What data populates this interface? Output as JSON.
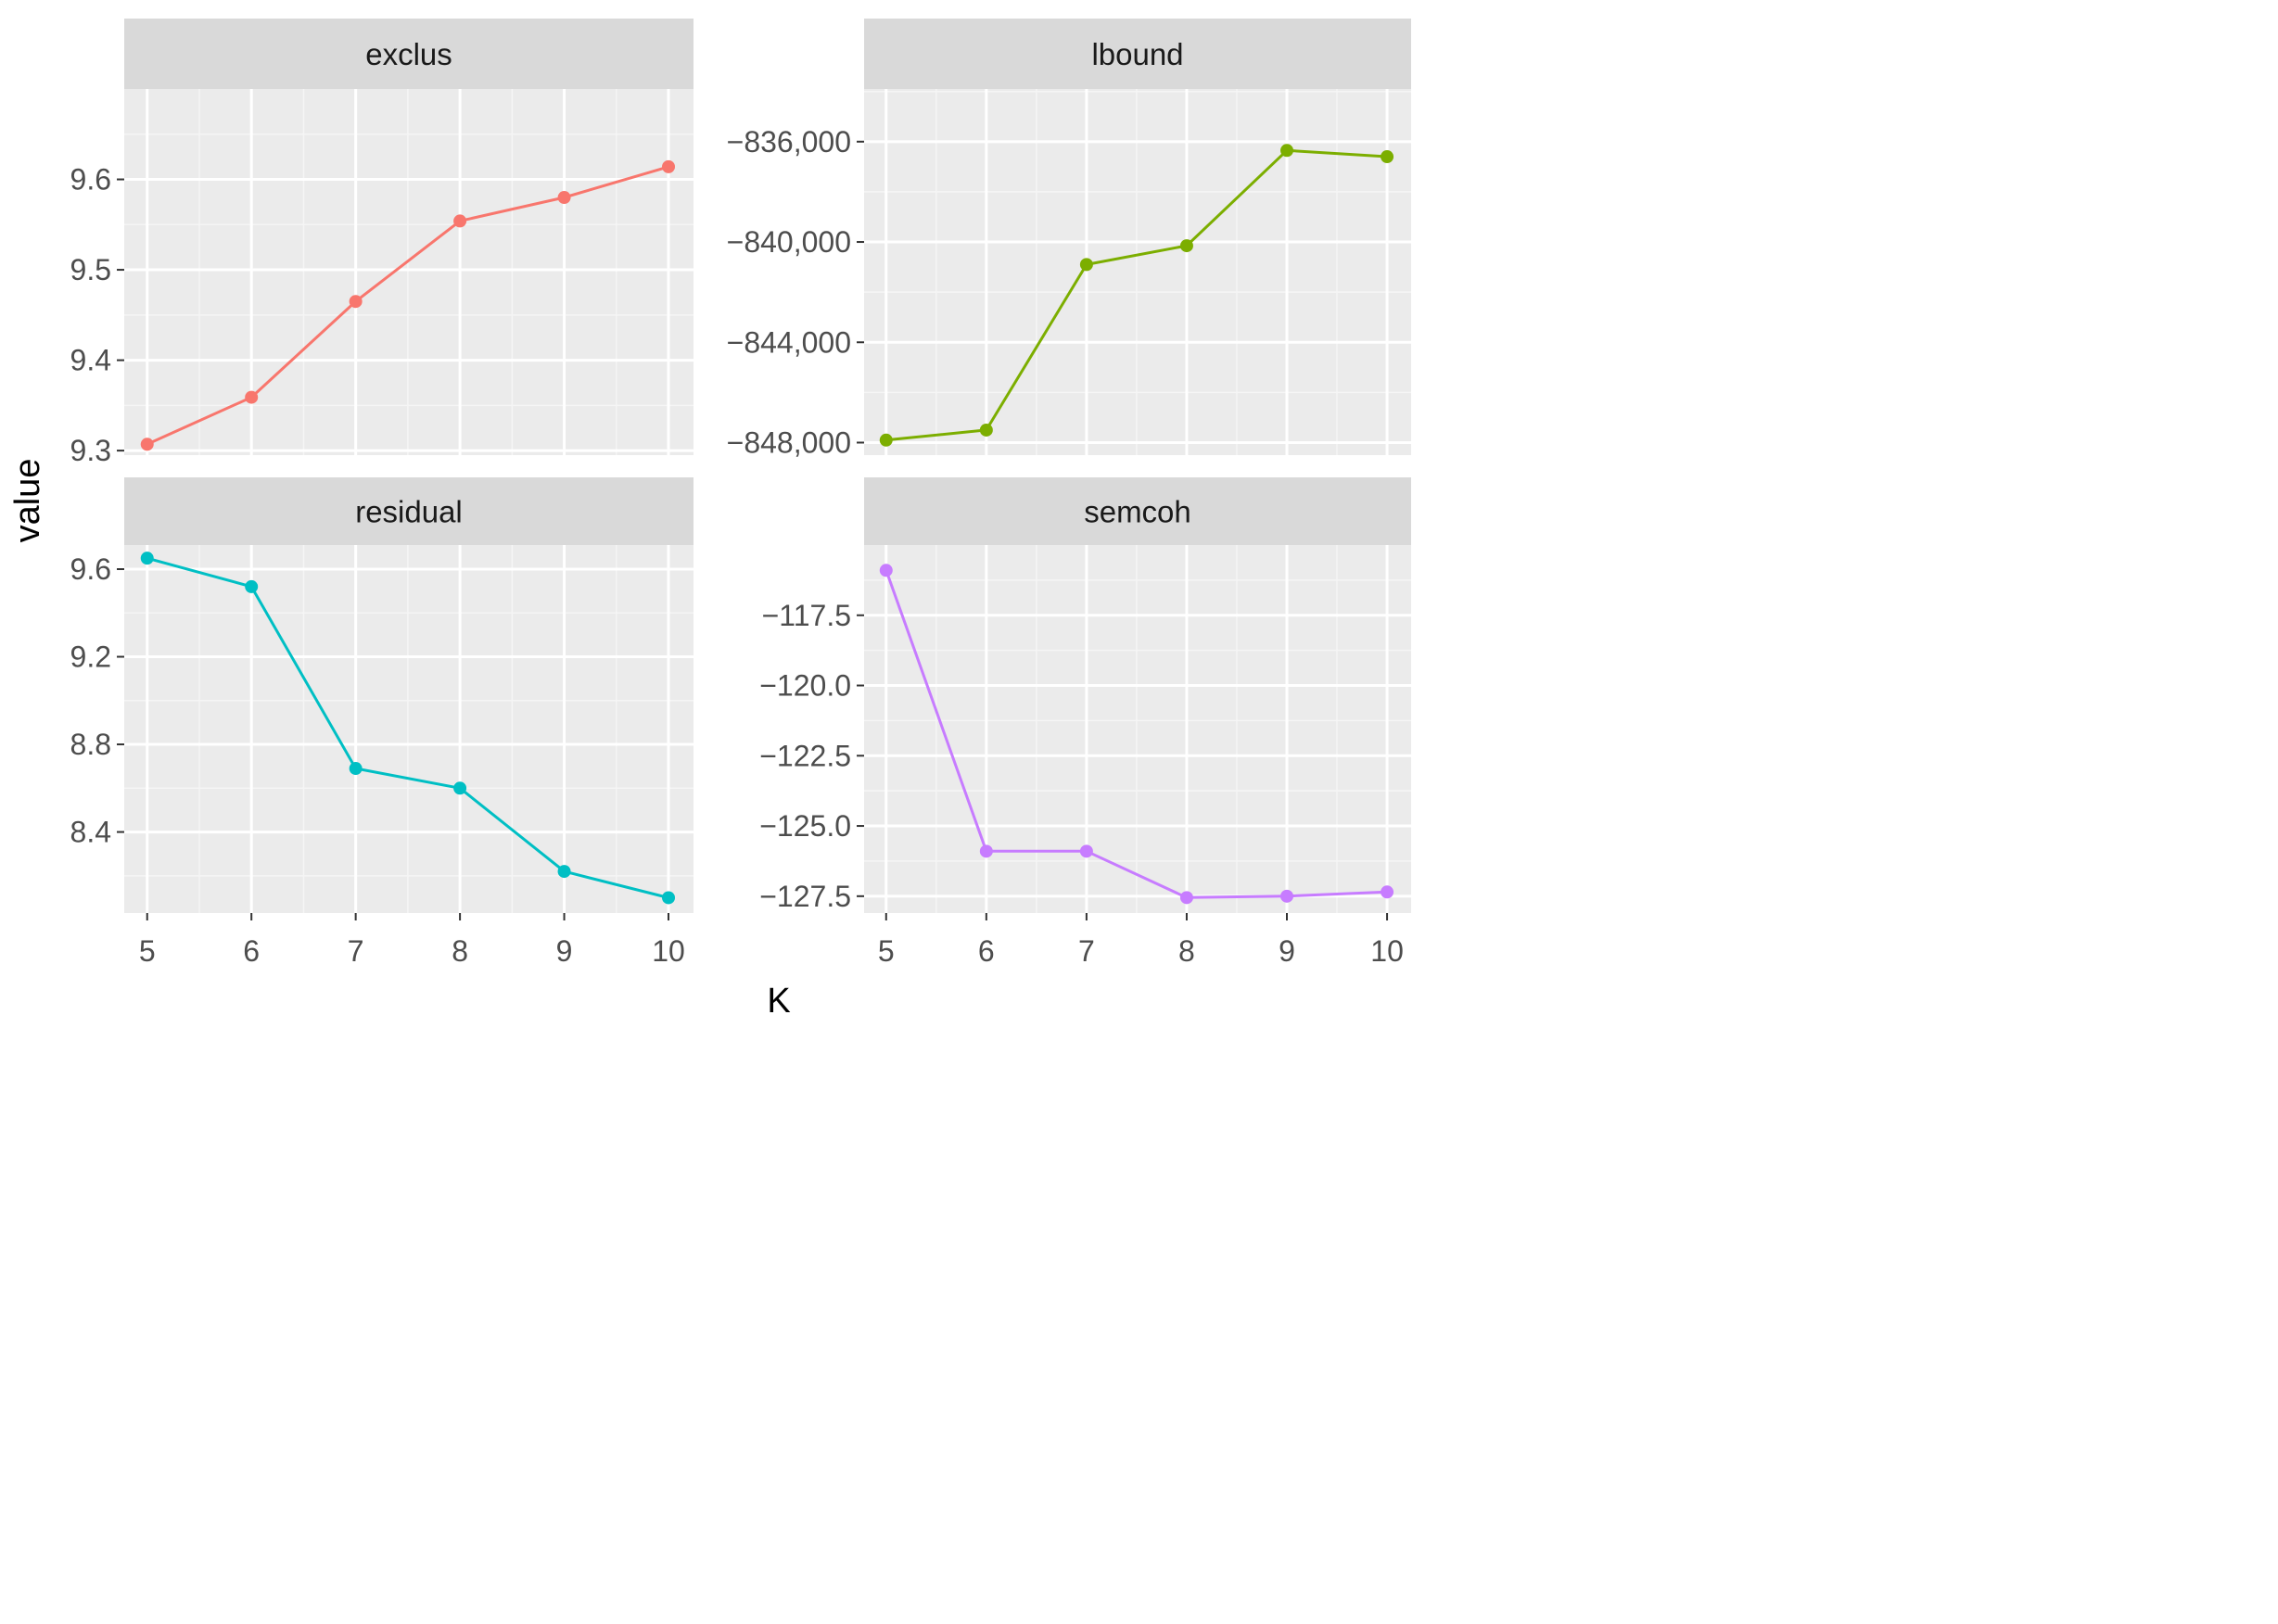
{
  "x_axis_title": "K",
  "y_axis_title": "value",
  "chart_data": [
    {
      "type": "line",
      "title": "exclus",
      "color": "#f8766d",
      "x": [
        5,
        6,
        7,
        8,
        9,
        10
      ],
      "values": [
        9.307,
        9.359,
        9.465,
        9.554,
        9.58,
        9.614
      ],
      "xlim": [
        4.78,
        10.24
      ],
      "ylim": [
        9.295,
        9.7
      ],
      "xticks": [
        5,
        6,
        7,
        8,
        9,
        10
      ],
      "yticks": [
        9.3,
        9.4,
        9.5,
        9.6
      ],
      "ytick_labels": [
        "9.3",
        "9.4",
        "9.5",
        "9.6"
      ],
      "grid": true
    },
    {
      "type": "line",
      "title": "lbound",
      "color": "#7cae00",
      "x": [
        5,
        6,
        7,
        8,
        9,
        10
      ],
      "values": [
        -847900,
        -847500,
        -840900,
        -840150,
        -836350,
        -836600
      ],
      "xlim": [
        4.78,
        10.24
      ],
      "ylim": [
        -848500,
        -833900
      ],
      "xticks": [
        5,
        6,
        7,
        8,
        9,
        10
      ],
      "yticks": [
        -848000,
        -844000,
        -840000,
        -836000
      ],
      "ytick_labels": [
        "−848,000",
        "−844,000",
        "−840,000",
        "−836,000"
      ],
      "grid": true
    },
    {
      "type": "line",
      "title": "residual",
      "color": "#00bfc4",
      "x": [
        5,
        6,
        7,
        8,
        9,
        10
      ],
      "values": [
        9.65,
        9.52,
        8.69,
        8.6,
        8.22,
        8.1
      ],
      "xlim": [
        4.78,
        10.24
      ],
      "ylim": [
        8.03,
        9.71
      ],
      "xticks": [
        5,
        6,
        7,
        8,
        9,
        10
      ],
      "yticks": [
        8.4,
        8.8,
        9.2,
        9.6
      ],
      "ytick_labels": [
        "8.4",
        "8.8",
        "9.2",
        "9.6"
      ],
      "grid": true
    },
    {
      "type": "line",
      "title": "semcoh",
      "color": "#c77cff",
      "x": [
        5,
        6,
        7,
        8,
        9,
        10
      ],
      "values": [
        -115.9,
        -125.9,
        -125.9,
        -127.55,
        -127.5,
        -127.35
      ],
      "xlim": [
        4.78,
        10.24
      ],
      "ylim": [
        -128.1,
        -115.0
      ],
      "xticks": [
        5,
        6,
        7,
        8,
        9,
        10
      ],
      "yticks": [
        -127.5,
        -125.0,
        -122.5,
        -120.0,
        -117.5
      ],
      "ytick_labels": [
        "−127.5",
        "−125.0",
        "−122.5",
        "−120.0",
        "−117.5"
      ],
      "grid": true
    }
  ]
}
